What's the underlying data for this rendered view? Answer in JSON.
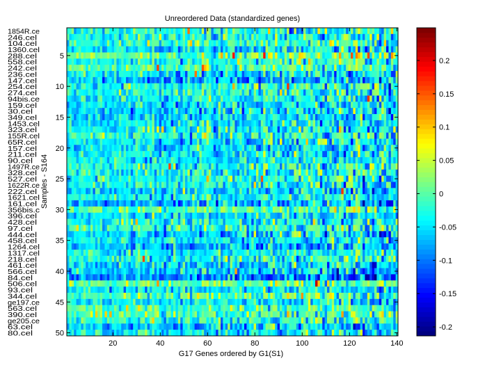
{
  "chart_data": {
    "type": "heatmap",
    "title": "Unreordered Data (standardized genes)",
    "xlabel": "G17 Genes ordered by G1(S1)",
    "ylabel": "Samples - S164",
    "n_columns": 140,
    "n_rows": 50,
    "xlim": [
      0.5,
      140.5
    ],
    "ylim": [
      0.5,
      50.5
    ],
    "x_ticks": [
      "20",
      "40",
      "60",
      "80",
      "100",
      "120",
      "140"
    ],
    "y_ticks": [
      "5",
      "10",
      "15",
      "20",
      "25",
      "30",
      "35",
      "40",
      "45",
      "50"
    ],
    "row_labels": [
      "1854R.ce",
      "246.cel",
      "104.cel",
      "1360.cel",
      "288.cel",
      "558.cel",
      "242.cel",
      "236.cel",
      "147.cel",
      "254.cel",
      "274.cel",
      "94bis.ce",
      "159.cel",
      "30.cel",
      "349.cel",
      "1453.cel",
      "323.cel",
      "155R.cel",
      "65R.cel",
      "157.cel",
      "211.cel",
      "90.cel",
      "1497R.ce",
      "328.cel",
      "527.cel",
      "1622R.ce",
      "222.cel",
      "1621.cel",
      "161.cel",
      "356bis.c",
      "396.cel",
      "428.cel",
      "97.cel",
      "444.cel",
      "458.cel",
      "1264.cel",
      "1317.cel",
      "218.cel",
      "461.cel",
      "566.cel",
      "84.cel",
      "506.cel",
      "93.cel",
      "344.cel",
      "ge197.ce",
      "563.cel",
      "390.cel",
      "ge205.ce",
      "63.cel",
      "80.cel"
    ],
    "colorbar": {
      "colormap": "jet",
      "range": [
        -0.2135,
        0.249
      ],
      "ticks": [
        0.2,
        0.15,
        0.1,
        0.05,
        0,
        -0.05,
        -0.1,
        -0.15,
        -0.2
      ],
      "tick_labels": [
        "0.2",
        "0.15",
        "0.1",
        "0.05",
        "0",
        "-0.05",
        "-0.1",
        "-0.15",
        "-0.2"
      ]
    }
  }
}
